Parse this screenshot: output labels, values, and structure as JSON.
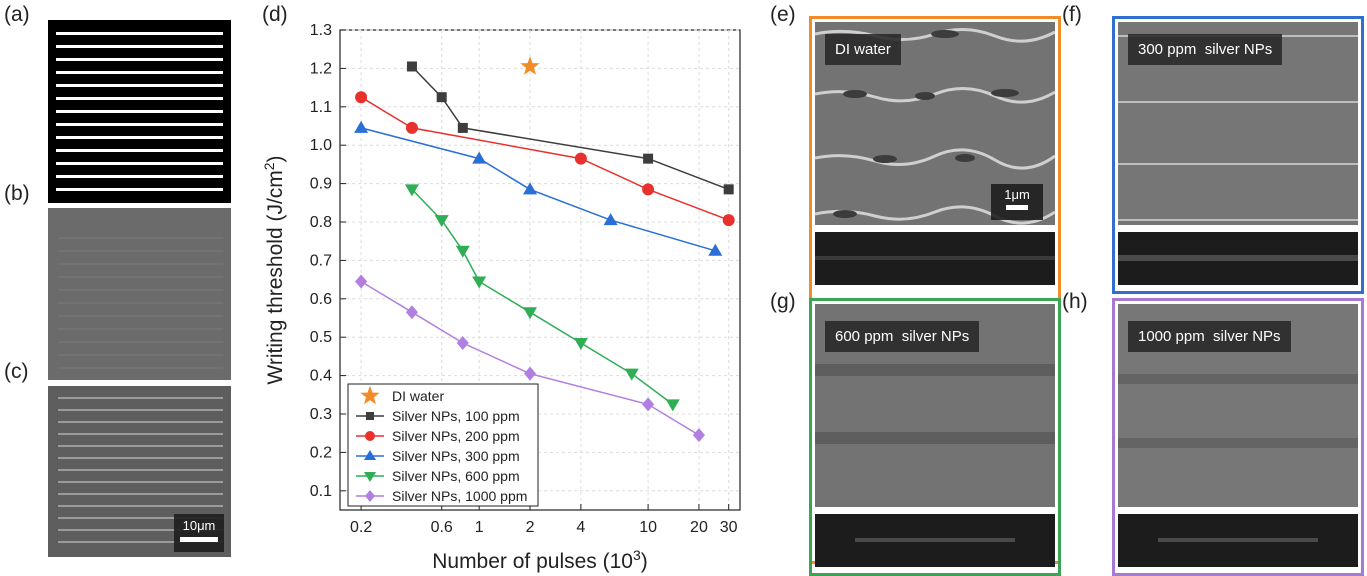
{
  "panel_labels": {
    "a": "(a)",
    "b": "(b)",
    "c": "(c)",
    "d": "(d)",
    "e": "(e)",
    "f": "(f)",
    "g": "(g)",
    "h": "(h)"
  },
  "scalebars": {
    "c": "10μm",
    "e": "1μm"
  },
  "sem_labels": {
    "e": "DI water",
    "f": "300 ppm  silver NPs",
    "g": "600 ppm  silver NPs",
    "h": "1000 ppm  silver NPs"
  },
  "frame_colors": {
    "e": "#f28c28",
    "f": "#2f6fd1",
    "g": "#3aa655",
    "h": "#a77ad1"
  },
  "chart_data": {
    "type": "line",
    "xlabel": "Number of pulses (10^3)",
    "ylabel": "Writing threshold (J/cm^2)",
    "xscale": "log",
    "xlim": [
      0.15,
      35
    ],
    "ylim": [
      0.05,
      1.3
    ],
    "xticks": [
      0.2,
      0.6,
      1,
      2,
      4,
      10,
      20,
      30
    ],
    "xtick_labels": [
      "0.2",
      "0.6",
      "1",
      "2",
      "4",
      "10",
      "20",
      "30"
    ],
    "yticks": [
      0.1,
      0.2,
      0.3,
      0.4,
      0.5,
      0.6,
      0.7,
      0.8,
      0.9,
      1.0,
      1.1,
      1.2,
      1.3
    ],
    "ytick_labels": [
      "0.1",
      "0.2",
      "0.3",
      "0.4",
      "0.5",
      "0.6",
      "0.7",
      "0.8",
      "0.9",
      "1.0",
      "1.1",
      "1.2",
      "1.3"
    ],
    "grid": true,
    "legend_position": "bottom-left",
    "series": [
      {
        "name": "DI water",
        "marker": "star",
        "color": "#f28c28",
        "line": false,
        "x": [
          2
        ],
        "y": [
          1.205
        ]
      },
      {
        "name": "Silver NPs, 100 ppm",
        "marker": "square",
        "color": "#3d3d3d",
        "x": [
          0.4,
          0.6,
          0.8,
          10,
          30
        ],
        "y": [
          1.205,
          1.125,
          1.045,
          0.965,
          0.885
        ]
      },
      {
        "name": "Silver NPs, 200 ppm",
        "marker": "circle",
        "color": "#e8312d",
        "x": [
          0.2,
          0.4,
          4,
          10,
          30
        ],
        "y": [
          1.125,
          1.045,
          0.965,
          0.885,
          0.805
        ]
      },
      {
        "name": "Silver NPs, 300 ppm",
        "marker": "triangle-up",
        "color": "#2a6ed8",
        "x": [
          0.2,
          1,
          2,
          6,
          25
        ],
        "y": [
          1.045,
          0.965,
          0.885,
          0.805,
          0.725
        ]
      },
      {
        "name": "Silver NPs, 600 ppm",
        "marker": "triangle-down",
        "color": "#2fae55",
        "x": [
          0.4,
          0.6,
          0.8,
          1,
          2,
          4,
          8,
          14
        ],
        "y": [
          0.885,
          0.805,
          0.725,
          0.645,
          0.565,
          0.485,
          0.405,
          0.325
        ]
      },
      {
        "name": "Silver NPs, 1000 ppm",
        "marker": "diamond",
        "color": "#b07fe0",
        "x": [
          0.2,
          0.4,
          0.8,
          2,
          10,
          20
        ],
        "y": [
          0.645,
          0.565,
          0.485,
          0.405,
          0.325,
          0.245
        ]
      }
    ]
  }
}
